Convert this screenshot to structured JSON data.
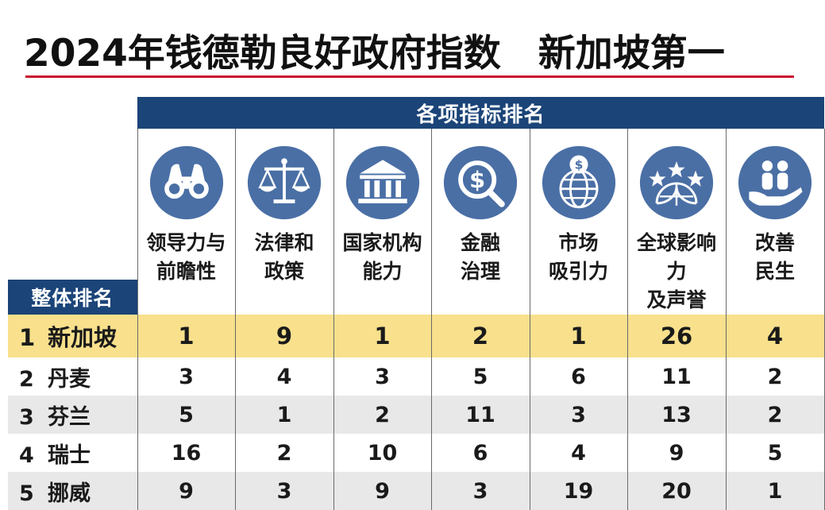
{
  "title": "2024年钱德勒良好政府指数　新加坡第一",
  "colors": {
    "header_blue": "#1b4478",
    "highlight_yellow": "#f8e08c",
    "title_rule_red": "#c8102e",
    "row_alt_gray": "#e8e8e8",
    "icon_blue": "#4a6fa5"
  },
  "headers": {
    "group": "各项指标排名",
    "overall": "整体排名",
    "indicators": [
      {
        "label": "领导力与\n前瞻性",
        "icon": "binoculars-icon"
      },
      {
        "label": "法律和\n政策",
        "icon": "scales-icon"
      },
      {
        "label": "国家机构\n能力",
        "icon": "institution-icon"
      },
      {
        "label": "金融\n治理",
        "icon": "dollar-magnifier-icon"
      },
      {
        "label": "市场\n吸引力",
        "icon": "globe-dollar-icon"
      },
      {
        "label": "全球影响力\n及声誉",
        "icon": "globe-stars-icon"
      },
      {
        "label": "改善\n民生",
        "icon": "hand-people-icon"
      }
    ]
  },
  "chart_data": {
    "type": "table",
    "title": "2024年钱德勒良好政府指数　新加坡第一",
    "columns": [
      "整体排名",
      "领导力与前瞻性",
      "法律和政策",
      "国家机构能力",
      "金融治理",
      "市场吸引力",
      "全球影响力及声誉",
      "改善民生"
    ],
    "rows": [
      {
        "rank": "1",
        "country": "新加坡",
        "values": [
          "1",
          "9",
          "1",
          "2",
          "1",
          "26",
          "4"
        ]
      },
      {
        "rank": "2",
        "country": "丹麦",
        "values": [
          "3",
          "4",
          "3",
          "5",
          "6",
          "11",
          "2"
        ]
      },
      {
        "rank": "3",
        "country": "芬兰",
        "values": [
          "5",
          "1",
          "2",
          "11",
          "3",
          "13",
          "2"
        ]
      },
      {
        "rank": "4",
        "country": "瑞士",
        "values": [
          "16",
          "2",
          "10",
          "6",
          "4",
          "9",
          "5"
        ]
      },
      {
        "rank": "5",
        "country": "挪威",
        "values": [
          "9",
          "3",
          "9",
          "3",
          "19",
          "20",
          "1"
        ]
      }
    ]
  }
}
